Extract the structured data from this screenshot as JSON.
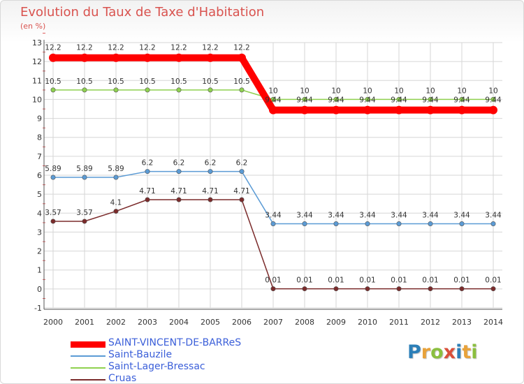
{
  "title": "Evolution du Taux de Taxe d'Habitation",
  "subtitle": "(en %)",
  "logo": {
    "text": "Proxiti",
    "letter_colors": [
      "#2c7fb8",
      "#e8a23a",
      "#8bbf3f",
      "#d94f3a",
      "#2c7fb8",
      "#e8a23a",
      "#8bbf3f"
    ]
  },
  "chart_data": {
    "type": "line",
    "title": "Evolution du Taux de Taxe d'Habitation",
    "ylabel": "(en %)",
    "xlabel": "",
    "ylim": [
      -1,
      13
    ],
    "y_ticks": [
      "-1",
      "0",
      "1",
      "2",
      "3",
      "4",
      "5",
      "6",
      "7",
      "8",
      "9",
      "10",
      "11",
      "12",
      "13"
    ],
    "categories": [
      "2000",
      "2001",
      "2002",
      "2003",
      "2004",
      "2005",
      "2006",
      "2007",
      "2008",
      "2009",
      "2010",
      "2011",
      "2012",
      "2013",
      "2014"
    ],
    "grid": true,
    "series": [
      {
        "name": "SAINT-VINCENT-DE-BARReS",
        "color": "#ff0000",
        "thick": true,
        "values": [
          12.2,
          12.2,
          12.2,
          12.2,
          12.2,
          12.2,
          12.2,
          9.44,
          9.44,
          9.44,
          9.44,
          9.44,
          9.44,
          9.44,
          9.44
        ],
        "labels": [
          "12.2",
          "12.2",
          "12.2",
          "12.2",
          "12.2",
          "12.2",
          "12.2",
          "9.44",
          "9.44",
          "9.44",
          "9.44",
          "9.44",
          "9.44",
          "9.44",
          "9.44"
        ]
      },
      {
        "name": "Saint-Bauzile",
        "color": "#5b9bd5",
        "thick": false,
        "values": [
          5.89,
          5.89,
          5.89,
          6.2,
          6.2,
          6.2,
          6.2,
          3.44,
          3.44,
          3.44,
          3.44,
          3.44,
          3.44,
          3.44,
          3.44
        ],
        "labels": [
          "5.89",
          "5.89",
          "5.89",
          "6.2",
          "6.2",
          "6.2",
          "6.2",
          "3.44",
          "3.44",
          "3.44",
          "3.44",
          "3.44",
          "3.44",
          "3.44",
          "3.44"
        ]
      },
      {
        "name": "Saint-Lager-Bressac",
        "color": "#8fd14f",
        "thick": false,
        "values": [
          10.5,
          10.5,
          10.5,
          10.5,
          10.5,
          10.5,
          10.5,
          10,
          10,
          10,
          10,
          10,
          10,
          10,
          10
        ],
        "labels": [
          "10.5",
          "10.5",
          "10.5",
          "10.5",
          "10.5",
          "10.5",
          "10.5",
          "10",
          "10",
          "10",
          "10",
          "10",
          "10",
          "10",
          "10"
        ]
      },
      {
        "name": "Cruas",
        "color": "#7b2b2b",
        "thick": false,
        "values": [
          3.57,
          3.57,
          4.1,
          4.71,
          4.71,
          4.71,
          4.71,
          0.01,
          0.01,
          0.01,
          0.01,
          0.01,
          0.01,
          0.01,
          0.01
        ],
        "labels": [
          "3.57",
          "3.57",
          "4.1",
          "4.71",
          "4.71",
          "4.71",
          "4.71",
          "0.01",
          "0.01",
          "0.01",
          "0.01",
          "0.01",
          "0.01",
          "0.01",
          "0.01"
        ]
      }
    ]
  }
}
